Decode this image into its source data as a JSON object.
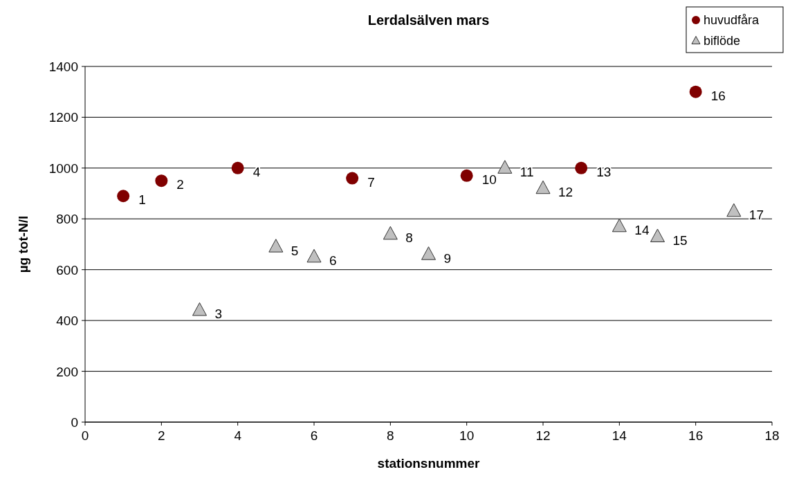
{
  "chart_data": {
    "type": "scatter",
    "title": "Lerdalsälven mars",
    "xlabel": "stationsnummer",
    "ylabel": "µg tot-N/l",
    "series": [
      {
        "name": "huvudfåra",
        "color": "#800000",
        "marker": "circle",
        "x": [
          1,
          2,
          4,
          7,
          10,
          13,
          16
        ],
        "values": [
          890,
          950,
          1000,
          960,
          970,
          1000,
          1300
        ]
      },
      {
        "name": "biflöde",
        "color": "#c0c0c0",
        "marker": "triangle",
        "x": [
          3,
          5,
          6,
          8,
          9,
          11,
          12,
          14,
          15,
          17
        ],
        "values": [
          440,
          690,
          650,
          740,
          660,
          1000,
          920,
          770,
          730,
          830
        ]
      }
    ],
    "annotations": [
      {
        "text": "1",
        "x": 1,
        "y": 890
      },
      {
        "text": "2",
        "x": 2,
        "y": 950
      },
      {
        "text": "3",
        "x": 3,
        "y": 440
      },
      {
        "text": "4",
        "x": 4,
        "y": 1000
      },
      {
        "text": "5",
        "x": 5,
        "y": 690
      },
      {
        "text": "6",
        "x": 6,
        "y": 650
      },
      {
        "text": "7",
        "x": 7,
        "y": 960
      },
      {
        "text": "8",
        "x": 8,
        "y": 740
      },
      {
        "text": "9",
        "x": 9,
        "y": 660
      },
      {
        "text": "10",
        "x": 10,
        "y": 970
      },
      {
        "text": "11",
        "x": 11,
        "y": 1000
      },
      {
        "text": "12",
        "x": 12,
        "y": 920
      },
      {
        "text": "13",
        "x": 13,
        "y": 1000
      },
      {
        "text": "14",
        "x": 14,
        "y": 770
      },
      {
        "text": "15",
        "x": 15,
        "y": 730
      },
      {
        "text": "16",
        "x": 16,
        "y": 1300
      },
      {
        "text": "17",
        "x": 17,
        "y": 830
      }
    ],
    "xlim": [
      0,
      18
    ],
    "xticks": [
      0,
      2,
      4,
      6,
      8,
      10,
      12,
      14,
      16,
      18
    ],
    "ylim": [
      0,
      1400
    ],
    "yticks": [
      0,
      200,
      400,
      600,
      800,
      1000,
      1200,
      1400
    ],
    "grid": "y",
    "legend": "top right"
  }
}
